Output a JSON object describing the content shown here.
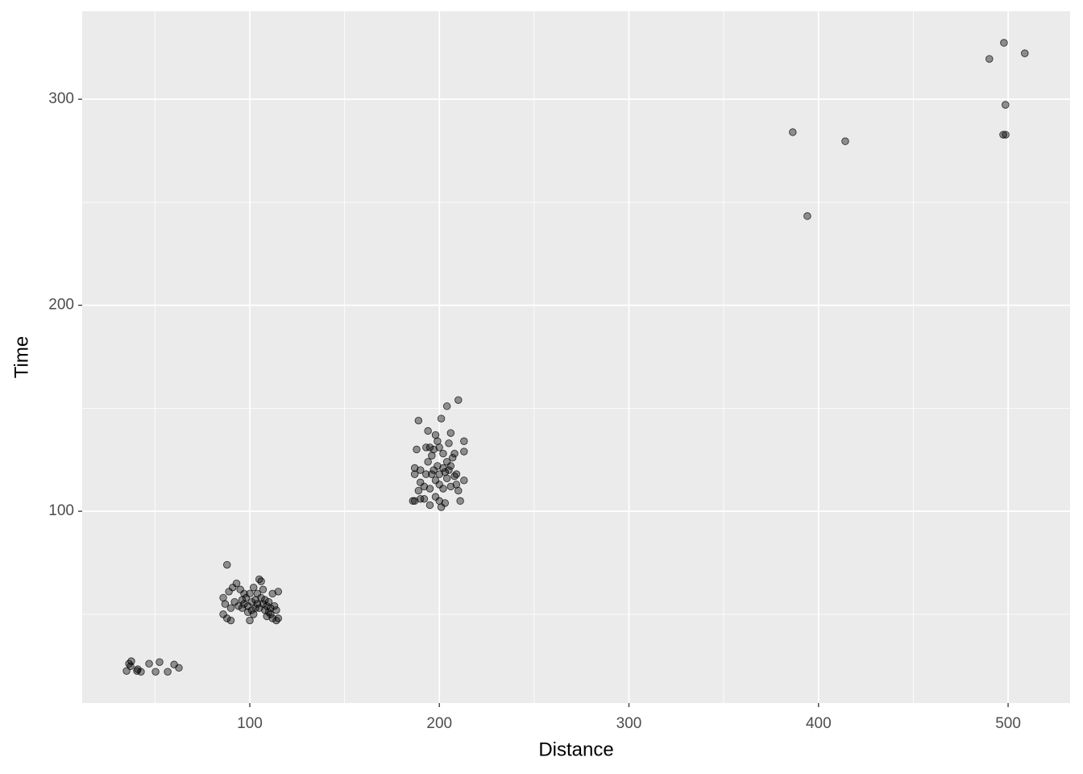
{
  "chart_data": {
    "type": "scatter",
    "x_label": "Distance",
    "y_label": "Time",
    "xlim": [
      11.6,
      532.7
    ],
    "ylim": [
      6.9,
      342.7
    ],
    "xticks": [
      100,
      200,
      300,
      400,
      500
    ],
    "yticks": [
      100,
      200,
      300
    ],
    "x_minor_ticks": [
      50,
      150,
      250,
      350,
      450
    ],
    "y_minor_ticks": [
      50,
      150,
      250
    ],
    "grid": true,
    "color": "#000000",
    "opacity": 0.4,
    "x": [
      35.0,
      36.3,
      37.5,
      40.5,
      42.6,
      46.9,
      50.3,
      52.4,
      56.7,
      60.1,
      62.6,
      40.9,
      37.1,
      88,
      91,
      93,
      89,
      86,
      87,
      86,
      88,
      90,
      90,
      92,
      95,
      96,
      97,
      98,
      99,
      100,
      100,
      101,
      102,
      102,
      103,
      104,
      104,
      105,
      105,
      106,
      106,
      107,
      107,
      108,
      108,
      109,
      110,
      110,
      111,
      112,
      112,
      113,
      114,
      115,
      115,
      114,
      94,
      97,
      99,
      101,
      103,
      109,
      111,
      96,
      189,
      194,
      201,
      204,
      210,
      198,
      199,
      206,
      213,
      213,
      208,
      205,
      200,
      197,
      195,
      193,
      188,
      196,
      202,
      207,
      194,
      199,
      204,
      206,
      187,
      190,
      193,
      197,
      200,
      203,
      205,
      208,
      209,
      213,
      187,
      190,
      192,
      195,
      198,
      200,
      202,
      204,
      206,
      210,
      189,
      192,
      198,
      200,
      203,
      211,
      186,
      187,
      190,
      195,
      201,
      209,
      202,
      196,
      386.4,
      394.1,
      414.1,
      490.1,
      497.8,
      508.8,
      498.6,
      497.4,
      498.7
    ],
    "values": [
      22.5,
      26.0,
      27.2,
      22.5,
      22.1,
      26.0,
      22.1,
      26.8,
      22.1,
      25.6,
      24.0,
      23.3,
      24.8,
      74,
      63,
      65,
      61,
      58,
      55,
      50,
      48,
      47,
      53,
      56,
      62,
      57,
      55,
      58,
      54,
      47,
      60,
      52,
      63,
      50,
      57,
      60,
      55,
      67,
      53,
      58,
      66,
      55,
      62,
      52,
      57,
      49,
      56,
      51,
      53,
      60,
      48,
      54,
      52,
      61,
      48,
      47,
      54,
      60,
      51,
      56,
      53,
      54,
      50,
      53,
      144,
      139,
      145,
      151,
      154,
      137,
      134,
      138,
      134,
      129,
      128,
      133,
      131,
      130,
      131,
      131,
      130,
      127,
      128,
      126,
      124,
      122,
      124,
      122,
      121,
      120,
      118,
      120,
      118,
      119,
      120,
      117,
      113,
      115,
      118,
      114,
      112,
      111,
      115,
      113,
      111,
      116,
      112,
      110,
      110,
      106,
      107,
      105,
      104,
      105,
      105,
      105,
      106,
      103,
      102,
      118,
      121,
      118,
      284,
      243.3,
      279.6,
      319.6,
      327.4,
      322.3,
      297.3,
      282.8,
      282.8
    ]
  }
}
